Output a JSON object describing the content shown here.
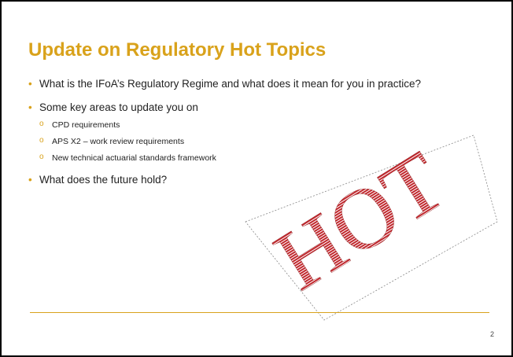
{
  "title": "Update on Regulatory Hot Topics",
  "bullets": [
    {
      "text": "What is the IFoA’s Regulatory Regime and what does it mean for you in practice?"
    },
    {
      "text": "Some key areas to update you on",
      "subitems": [
        "CPD requirements",
        "APS X2 – work review requirements",
        "New technical actuarial standards framework"
      ]
    },
    {
      "text": "What does the future hold?"
    }
  ],
  "image": {
    "text": "HOT"
  },
  "page_number": "2"
}
